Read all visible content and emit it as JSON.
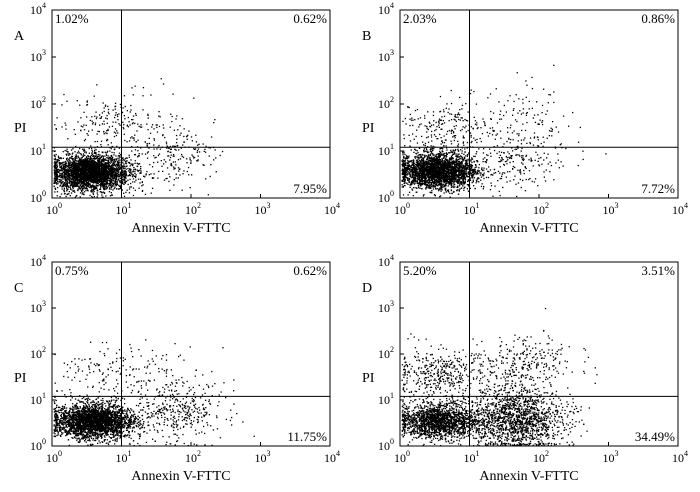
{
  "chart_data": [
    {
      "type": "scatter",
      "panel": "A",
      "xlabel": "Annexin V-FTTC",
      "ylabel": "PI",
      "xscale": "log",
      "yscale": "log",
      "xlim": [
        1,
        10000
      ],
      "ylim": [
        1,
        10000
      ],
      "gates": {
        "x": 10,
        "y": 12
      },
      "tick_labels": [
        "10^0",
        "10^1",
        "10^2",
        "10^3",
        "10^4"
      ],
      "quadrant_percentages": {
        "upper_left": "1.02%",
        "upper_right": "0.62%",
        "lower_right": "7.95%"
      },
      "clusters": [
        {
          "center": [
            3.5,
            3.5
          ],
          "count": 3200
        },
        {
          "center": [
            6,
            40
          ],
          "count": 160
        },
        {
          "center": [
            45,
            8
          ],
          "count": 220
        },
        {
          "center": [
            25,
            45
          ],
          "count": 60
        }
      ]
    },
    {
      "type": "scatter",
      "panel": "B",
      "xlabel": "Annexin V-FTTC",
      "ylabel": "PI",
      "xscale": "log",
      "yscale": "log",
      "xlim": [
        1,
        10000
      ],
      "ylim": [
        1,
        10000
      ],
      "gates": {
        "x": 10,
        "y": 12
      },
      "tick_labels": [
        "10^0",
        "10^1",
        "10^2",
        "10^3",
        "10^4"
      ],
      "quadrant_percentages": {
        "upper_left": "2.03%",
        "upper_right": "0.86%",
        "lower_right": "7.72%"
      },
      "clusters": [
        {
          "center": [
            3.5,
            3.8
          ],
          "count": 3200
        },
        {
          "center": [
            5,
            30
          ],
          "count": 240
        },
        {
          "center": [
            50,
            7
          ],
          "count": 220
        },
        {
          "center": [
            60,
            60
          ],
          "count": 90
        }
      ]
    },
    {
      "type": "scatter",
      "panel": "C",
      "xlabel": "Annexin V-FTTC",
      "ylabel": "PI",
      "xscale": "log",
      "yscale": "log",
      "xlim": [
        1,
        10000
      ],
      "ylim": [
        1,
        10000
      ],
      "gates": {
        "x": 10,
        "y": 12
      },
      "tick_labels": [
        "10^0",
        "10^1",
        "10^2",
        "10^3",
        "10^4"
      ],
      "quadrant_percentages": {
        "upper_left": "0.75%",
        "upper_right": "0.62%",
        "lower_right": "11.75%"
      },
      "clusters": [
        {
          "center": [
            4,
            3.5
          ],
          "count": 3300
        },
        {
          "center": [
            6,
            35
          ],
          "count": 120
        },
        {
          "center": [
            60,
            6
          ],
          "count": 380
        },
        {
          "center": [
            30,
            40
          ],
          "count": 60
        }
      ]
    },
    {
      "type": "scatter",
      "panel": "D",
      "xlabel": "Annexin V-FTTC",
      "ylabel": "PI",
      "xscale": "log",
      "yscale": "log",
      "xlim": [
        1,
        10000
      ],
      "ylim": [
        1,
        10000
      ],
      "gates": {
        "x": 10,
        "y": 12
      },
      "tick_labels": [
        "10^0",
        "10^1",
        "10^2",
        "10^3",
        "10^4"
      ],
      "quadrant_percentages": {
        "upper_left": "5.20%",
        "upper_right": "3.51%",
        "lower_right": "34.49%"
      },
      "clusters": [
        {
          "center": [
            3.5,
            3.5
          ],
          "count": 1700
        },
        {
          "center": [
            45,
            4
          ],
          "count": 1500
        },
        {
          "center": [
            3.5,
            35
          ],
          "count": 420
        },
        {
          "center": [
            60,
            60
          ],
          "count": 300
        }
      ]
    }
  ]
}
